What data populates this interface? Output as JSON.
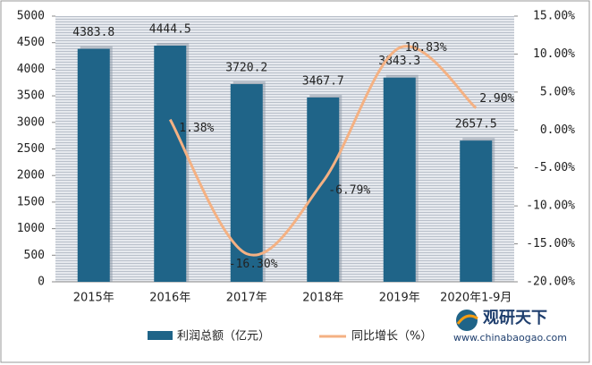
{
  "chart_data": {
    "type": "bar",
    "categories": [
      "2015年",
      "2016年",
      "2017年",
      "2018年",
      "2019年",
      "2020年1-9月"
    ],
    "series": [
      {
        "name": "利润总额（亿元）",
        "type": "bar",
        "color": "#1f6488",
        "values": [
          4383.8,
          4444.5,
          3720.2,
          3467.7,
          3843.3,
          2657.5
        ]
      },
      {
        "name": "同比增长（%）",
        "type": "line",
        "axis": "y2",
        "color": "#f4b183",
        "values": [
          null,
          1.38,
          -16.3,
          -6.79,
          10.83,
          2.9
        ],
        "value_labels": [
          null,
          "1.38%",
          "-16.30%",
          "-6.79%",
          "10.83%",
          "2.90%"
        ]
      }
    ],
    "ylim": [
      0,
      5000
    ],
    "yticks": [
      0,
      500,
      1000,
      1500,
      2000,
      2500,
      3000,
      3500,
      4000,
      4500,
      5000
    ],
    "y2lim": [
      -20,
      15
    ],
    "y2ticks": [
      {
        "value": -20,
        "label": "-20.00%"
      },
      {
        "value": -15,
        "label": "-15.00%"
      },
      {
        "value": -10,
        "label": "-10.00%"
      },
      {
        "value": -5,
        "label": "-5.00%"
      },
      {
        "value": 0,
        "label": "0.00%"
      },
      {
        "value": 5,
        "label": "5.00%"
      },
      {
        "value": 10,
        "label": "10.00%"
      },
      {
        "value": 15,
        "label": "15.00%"
      }
    ],
    "legend": "bottom",
    "watermark": {
      "brand": "观研天下",
      "url": "www.chinabaogao.com"
    }
  }
}
